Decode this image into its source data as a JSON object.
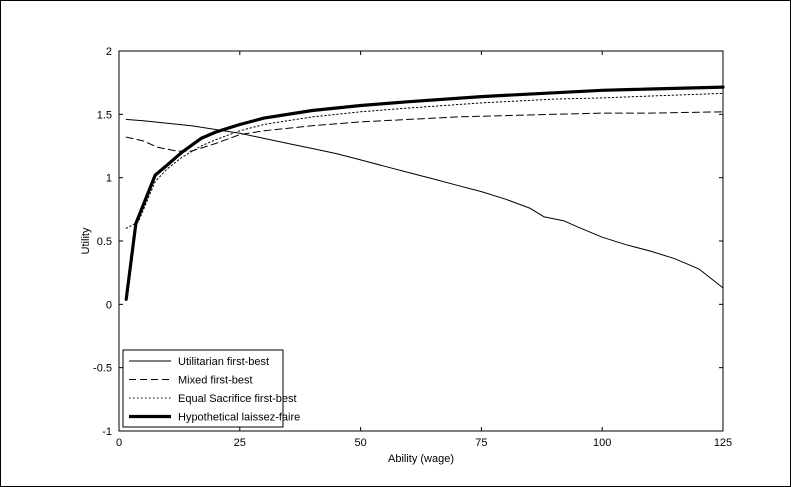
{
  "chart_data": {
    "type": "line",
    "title": "",
    "xlabel": "Ability (wage)",
    "ylabel": "Utility",
    "xlim": [
      0,
      125
    ],
    "ylim": [
      -1,
      2
    ],
    "xticks": [
      0,
      25,
      50,
      75,
      100,
      125
    ],
    "yticks": [
      -1,
      -0.5,
      0,
      0.5,
      1,
      1.5,
      2
    ],
    "ytick_labels": [
      "-1",
      "-0.5",
      "0",
      "0.5",
      "1",
      "1.5",
      "2"
    ],
    "grid": false,
    "legend_position": "bottom-left",
    "series": [
      {
        "name": "Utilitarian first-best",
        "style": "solid-thin",
        "points": [
          [
            1.5,
            1.46
          ],
          [
            5,
            1.45
          ],
          [
            10,
            1.43
          ],
          [
            15,
            1.41
          ],
          [
            20,
            1.38
          ],
          [
            25,
            1.35
          ],
          [
            30,
            1.31
          ],
          [
            35,
            1.27
          ],
          [
            40,
            1.23
          ],
          [
            45,
            1.19
          ],
          [
            50,
            1.14
          ],
          [
            55,
            1.09
          ],
          [
            60,
            1.04
          ],
          [
            65,
            0.99
          ],
          [
            70,
            0.94
          ],
          [
            75,
            0.89
          ],
          [
            80,
            0.83
          ],
          [
            85,
            0.76
          ],
          [
            88,
            0.69
          ],
          [
            92,
            0.66
          ],
          [
            95,
            0.61
          ],
          [
            100,
            0.53
          ],
          [
            105,
            0.47
          ],
          [
            110,
            0.42
          ],
          [
            115,
            0.36
          ],
          [
            120,
            0.28
          ],
          [
            125,
            0.13
          ]
        ]
      },
      {
        "name": "Mixed first-best",
        "style": "dashed",
        "points": [
          [
            1.5,
            1.32
          ],
          [
            5,
            1.29
          ],
          [
            8,
            1.24
          ],
          [
            12,
            1.21
          ],
          [
            15,
            1.21
          ],
          [
            20,
            1.27
          ],
          [
            25,
            1.34
          ],
          [
            30,
            1.37
          ],
          [
            40,
            1.41
          ],
          [
            50,
            1.44
          ],
          [
            60,
            1.46
          ],
          [
            70,
            1.48
          ],
          [
            80,
            1.49
          ],
          [
            90,
            1.5
          ],
          [
            100,
            1.51
          ],
          [
            110,
            1.51
          ],
          [
            125,
            1.52
          ]
        ]
      },
      {
        "name": "Equal Sacrifice first-best",
        "style": "dotted",
        "points": [
          [
            1.5,
            0.6
          ],
          [
            4,
            0.65
          ],
          [
            7.5,
            0.97
          ],
          [
            10,
            1.07
          ],
          [
            13,
            1.16
          ],
          [
            17,
            1.25
          ],
          [
            20,
            1.3
          ],
          [
            25,
            1.37
          ],
          [
            30,
            1.42
          ],
          [
            40,
            1.48
          ],
          [
            50,
            1.52
          ],
          [
            60,
            1.55
          ],
          [
            75,
            1.59
          ],
          [
            90,
            1.62
          ],
          [
            100,
            1.63
          ],
          [
            110,
            1.645
          ],
          [
            125,
            1.665
          ]
        ]
      },
      {
        "name": "Hypothetical laissez-faire",
        "style": "solid-thick",
        "points": [
          [
            1.5,
            0.04
          ],
          [
            3.5,
            0.64
          ],
          [
            7.5,
            1.02
          ],
          [
            10,
            1.1
          ],
          [
            13,
            1.2
          ],
          [
            17,
            1.31
          ],
          [
            20,
            1.36
          ],
          [
            25,
            1.42
          ],
          [
            30,
            1.47
          ],
          [
            40,
            1.53
          ],
          [
            50,
            1.57
          ],
          [
            60,
            1.6
          ],
          [
            75,
            1.64
          ],
          [
            90,
            1.67
          ],
          [
            100,
            1.69
          ],
          [
            110,
            1.7
          ],
          [
            125,
            1.715
          ]
        ]
      }
    ]
  }
}
